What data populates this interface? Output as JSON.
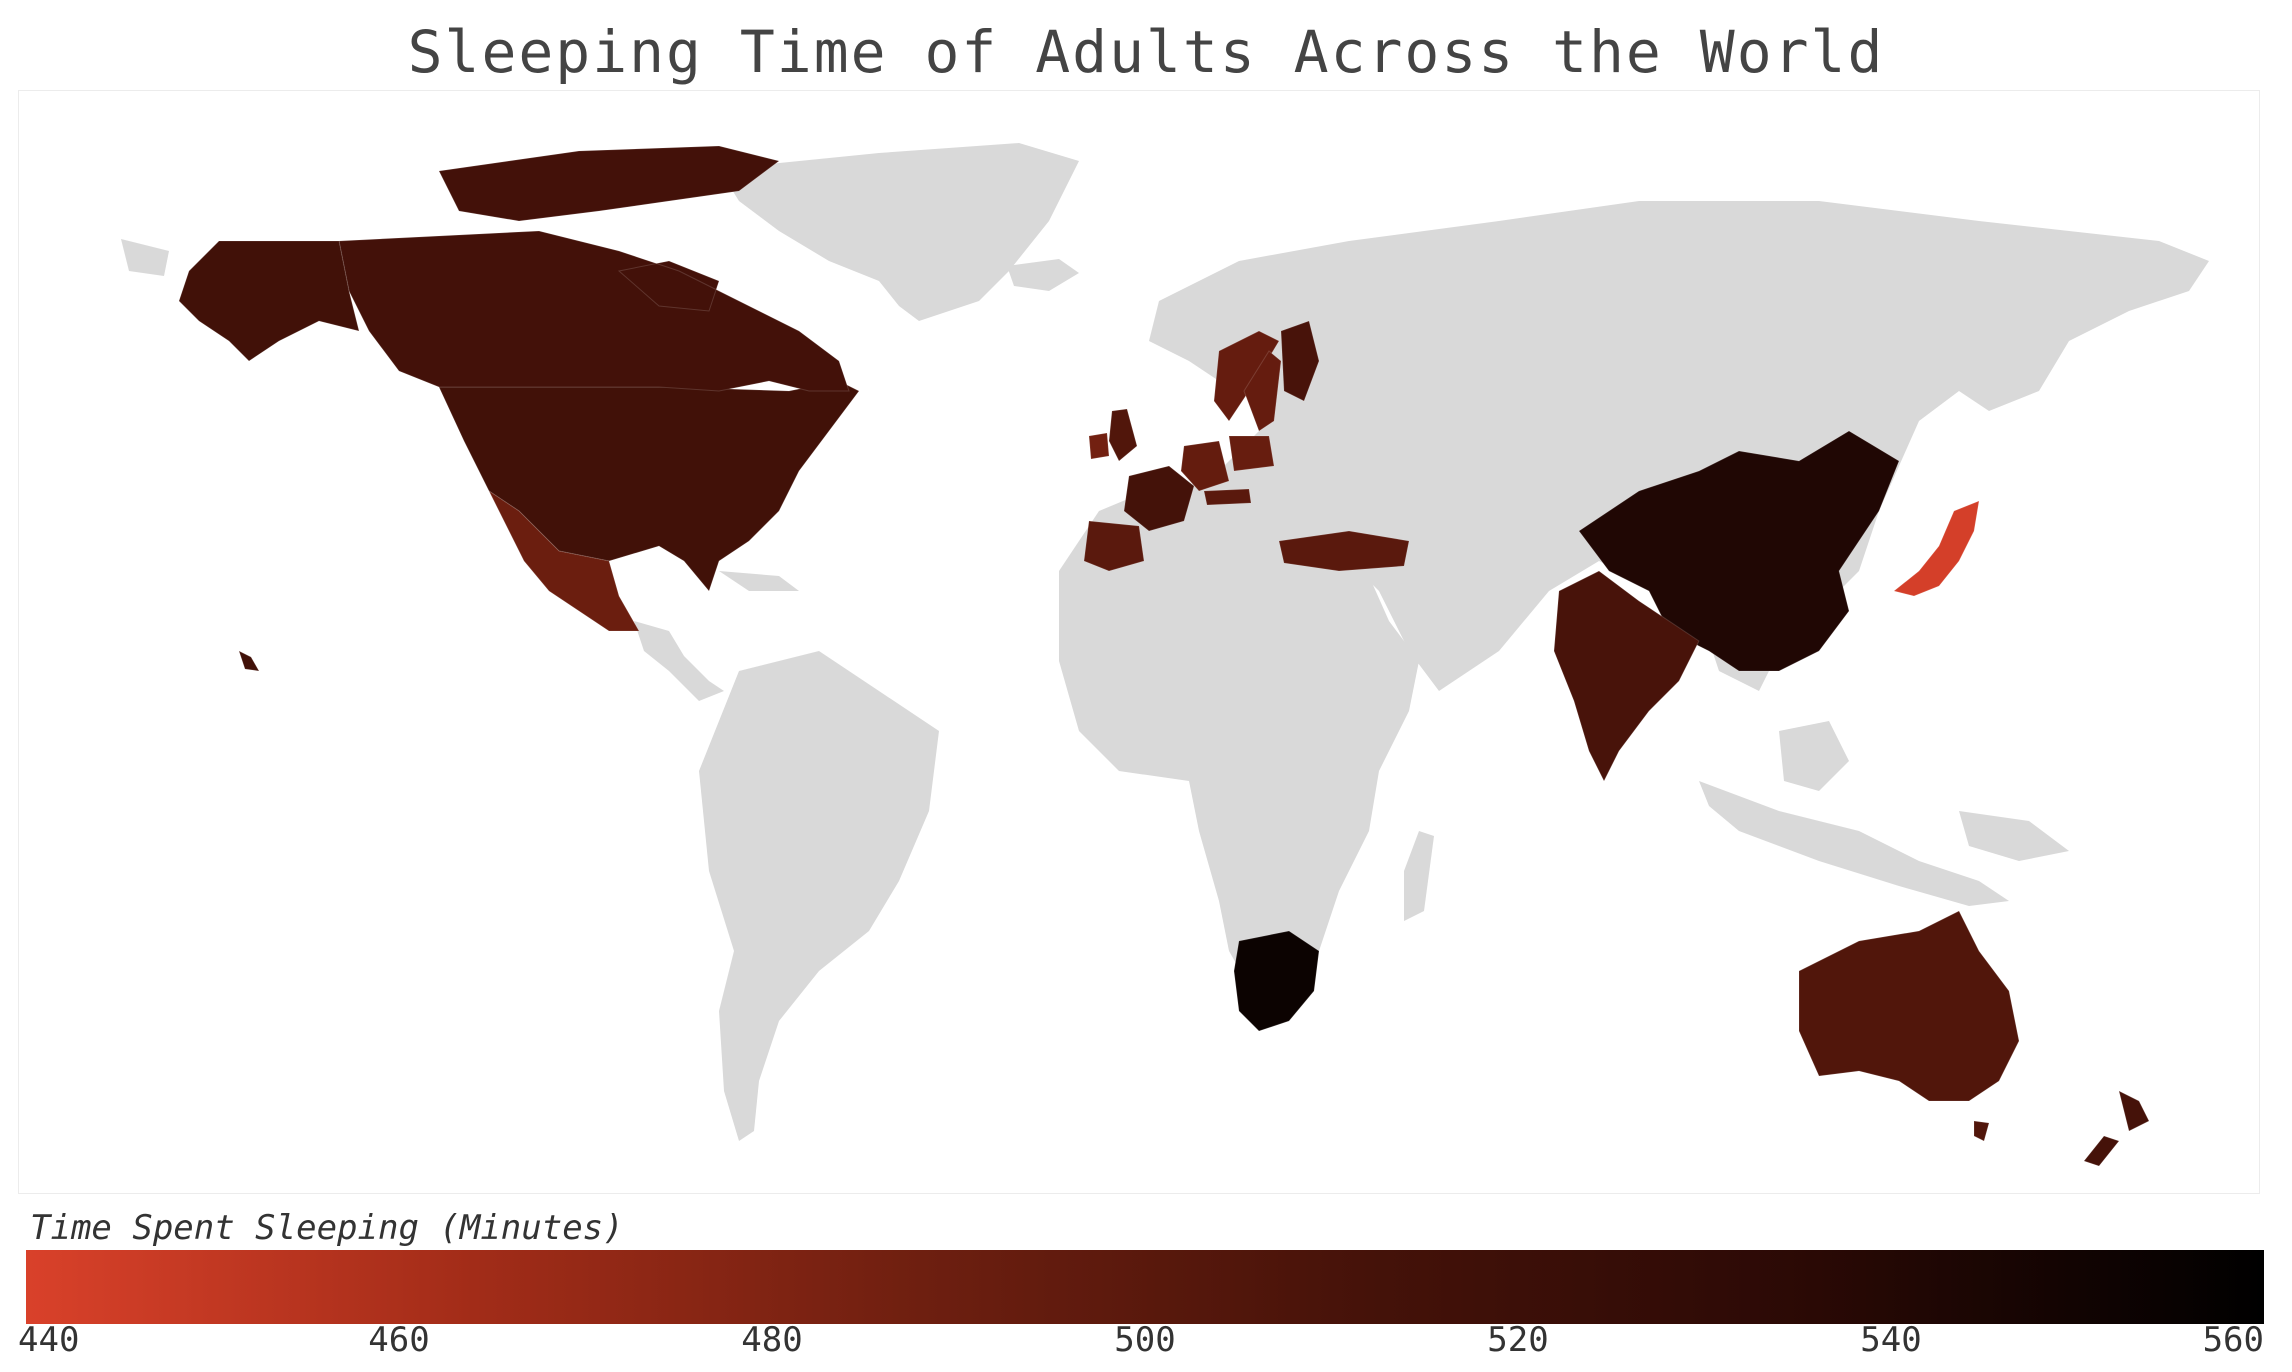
{
  "title": "Sleeping Time of Adults Across the World",
  "colorbar": {
    "title": "Time Spent Sleeping (Minutes)",
    "min": 440,
    "max": 560,
    "ticks": [
      440,
      460,
      480,
      500,
      520,
      540,
      560
    ],
    "colors": [
      "#d9412a",
      "#a22c18",
      "#6e1f10",
      "#451209",
      "#2a0905",
      "#000000"
    ]
  },
  "no_data_color": "#d9d9d9",
  "chart_data": {
    "type": "choropleth",
    "title": "Sleeping Time of Adults Across the World",
    "value_label": "Time Spent Sleeping (Minutes)",
    "range": [
      440,
      560
    ],
    "countries": [
      {
        "name": "United States",
        "value": 516
      },
      {
        "name": "Canada",
        "value": 514
      },
      {
        "name": "Mexico",
        "value": 490
      },
      {
        "name": "France",
        "value": 513
      },
      {
        "name": "Spain",
        "value": 500
      },
      {
        "name": "Ireland",
        "value": 486
      },
      {
        "name": "United Kingdom",
        "value": 505
      },
      {
        "name": "Germany",
        "value": 494
      },
      {
        "name": "Sweden",
        "value": 493
      },
      {
        "name": "Finland",
        "value": 510
      },
      {
        "name": "Norway",
        "value": 493
      },
      {
        "name": "Poland",
        "value": 492
      },
      {
        "name": "Austria",
        "value": 500
      },
      {
        "name": "Turkey",
        "value": 500
      },
      {
        "name": "China",
        "value": 542
      },
      {
        "name": "India",
        "value": 510
      },
      {
        "name": "Japan",
        "value": 442
      },
      {
        "name": "Australia",
        "value": 505
      },
      {
        "name": "New Zealand",
        "value": 512
      },
      {
        "name": "South Africa",
        "value": 553
      }
    ]
  }
}
